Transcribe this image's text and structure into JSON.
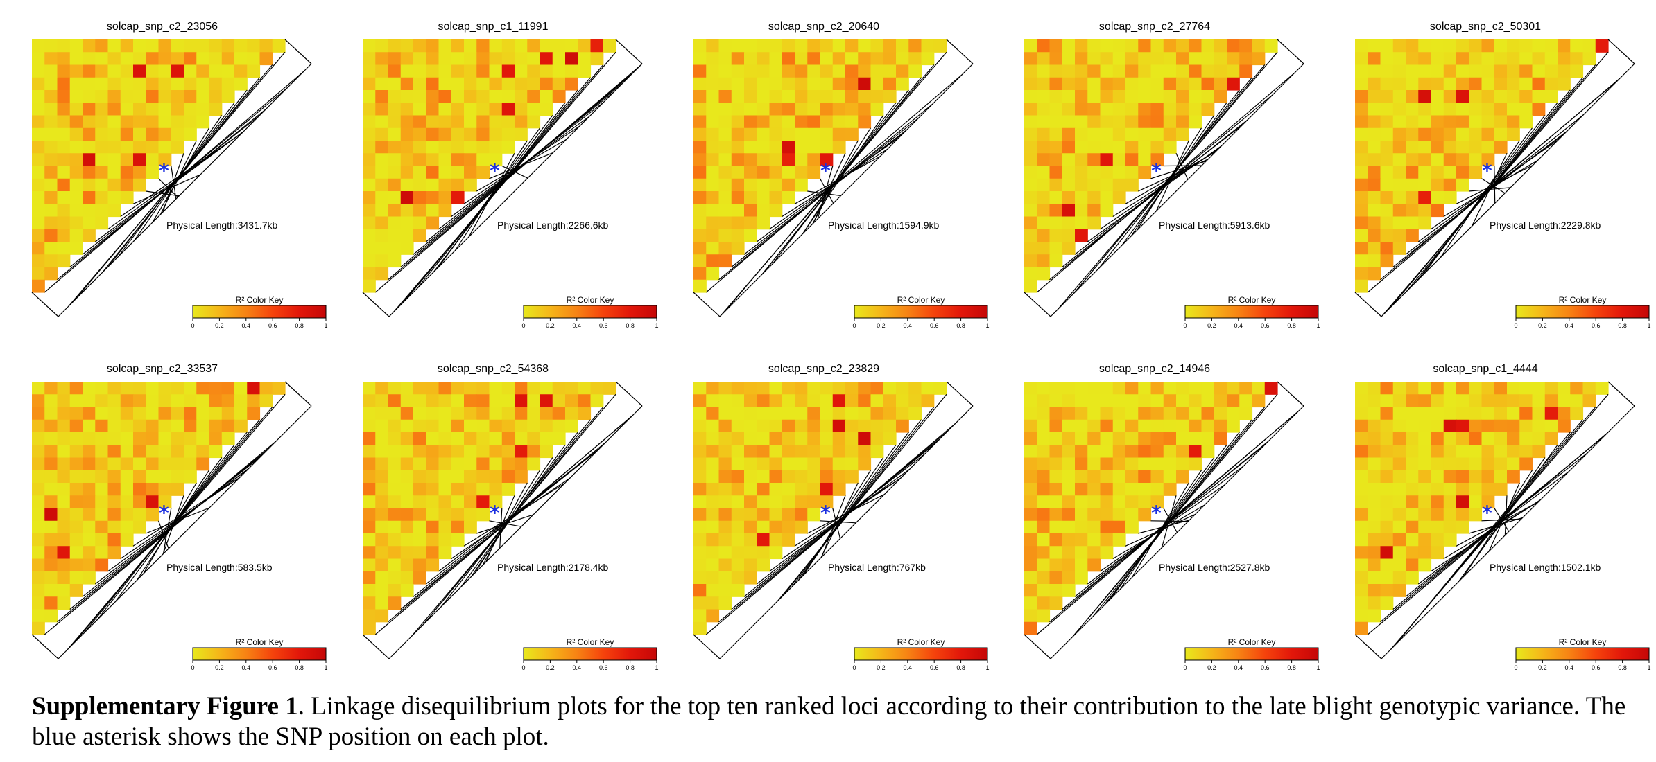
{
  "panels": [
    {
      "title": "solcap_snp_c2_23056",
      "physical_length": "Physical Length:3431.7kb",
      "n": 20,
      "snp_index": 10,
      "seed": 11,
      "hot": [
        [
          2,
          8
        ],
        [
          2,
          11
        ],
        [
          9,
          8
        ],
        [
          9,
          4
        ]
      ]
    },
    {
      "title": "solcap_snp_c1_11991",
      "physical_length": "Physical Length:2266.6kb",
      "n": 20,
      "snp_index": 10,
      "seed": 23,
      "hot": [
        [
          0,
          18
        ],
        [
          1,
          16
        ],
        [
          1,
          14
        ],
        [
          2,
          11
        ],
        [
          5,
          11
        ],
        [
          12,
          7
        ],
        [
          12,
          3
        ]
      ]
    },
    {
      "title": "solcap_snp_c2_20640",
      "physical_length": "Physical Length:1594.9kb",
      "n": 20,
      "snp_index": 10,
      "seed": 37,
      "hot": [
        [
          3,
          13
        ],
        [
          8,
          7
        ],
        [
          9,
          7
        ],
        [
          9,
          10
        ]
      ]
    },
    {
      "title": "solcap_snp_c2_27764",
      "physical_length": "Physical Length:5913.6kb",
      "n": 20,
      "snp_index": 10,
      "seed": 41,
      "hot": [
        [
          3,
          16
        ],
        [
          9,
          6
        ],
        [
          13,
          3
        ],
        [
          15,
          4
        ]
      ]
    },
    {
      "title": "solcap_snp_c2_50301",
      "physical_length": "Physical Length:2229.8kb",
      "n": 20,
      "snp_index": 10,
      "seed": 53,
      "hot": [
        [
          4,
          5
        ],
        [
          4,
          8
        ],
        [
          12,
          5
        ],
        [
          0,
          19
        ]
      ]
    },
    {
      "title": "solcap_snp_c2_33537",
      "physical_length": "Physical Length:583.5kb",
      "n": 20,
      "snp_index": 10,
      "seed": 61,
      "hot": [
        [
          0,
          17
        ],
        [
          9,
          9
        ],
        [
          10,
          1
        ],
        [
          13,
          2
        ],
        [
          14,
          6
        ]
      ]
    },
    {
      "title": "solcap_snp_c2_54368",
      "physical_length": "Physical Length:2178.4kb",
      "n": 20,
      "snp_index": 10,
      "seed": 71,
      "hot": [
        [
          1,
          12
        ],
        [
          1,
          14
        ],
        [
          5,
          12
        ],
        [
          9,
          9
        ],
        [
          14,
          7
        ]
      ]
    },
    {
      "title": "solcap_snp_c2_23829",
      "physical_length": "Physical Length:767kb",
      "n": 20,
      "snp_index": 10,
      "seed": 83,
      "hot": [
        [
          1,
          11
        ],
        [
          3,
          11
        ],
        [
          4,
          13
        ],
        [
          8,
          10
        ],
        [
          12,
          5
        ]
      ]
    },
    {
      "title": "solcap_snp_c2_14946",
      "physical_length": "Physical Length:2527.8kb",
      "n": 20,
      "snp_index": 10,
      "seed": 97,
      "hot": [
        [
          0,
          19
        ],
        [
          5,
          13
        ]
      ]
    },
    {
      "title": "solcap_snp_c1_4444",
      "physical_length": "Physical Length:1502.1kb",
      "n": 20,
      "snp_index": 10,
      "seed": 101,
      "hot": [
        [
          2,
          15
        ],
        [
          3,
          7
        ],
        [
          3,
          8
        ],
        [
          9,
          8
        ],
        [
          13,
          2
        ]
      ]
    }
  ],
  "color_key": {
    "title": "R² Color Key",
    "ticks": [
      "0",
      "0.2",
      "0.4",
      "0.6",
      "0.8",
      "1"
    ],
    "colors": [
      "#e8e81c",
      "#f5b619",
      "#f78314",
      "#f5430c",
      "#e2170a",
      "#c50707"
    ]
  },
  "asterisk": "*",
  "caption": {
    "label": "Supplementary Figure 1",
    "text": ". Linkage disequilibrium plots for the top ten ranked loci according to their contribution to the late blight genotypic variance. The blue asterisk shows the SNP position on each plot."
  }
}
